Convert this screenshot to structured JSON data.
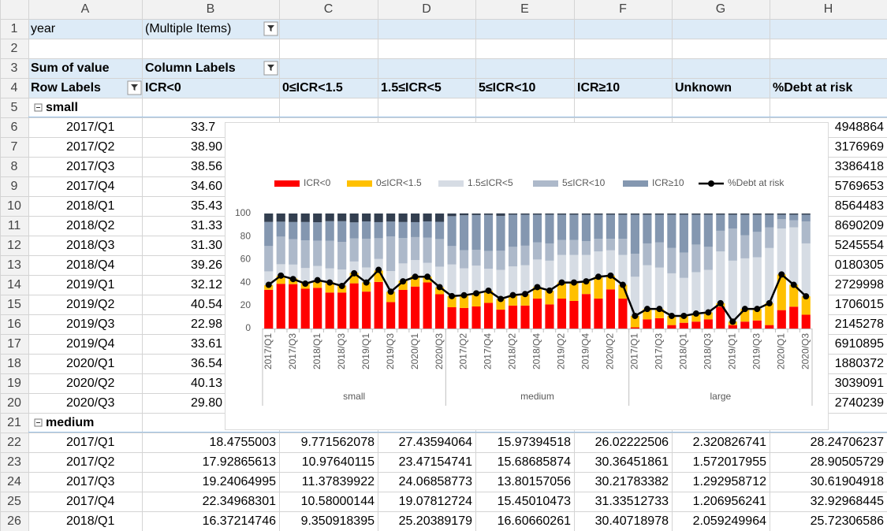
{
  "sheet": {
    "columns": [
      "A",
      "B",
      "C",
      "D",
      "E",
      "F",
      "G",
      "H"
    ],
    "row_numbers": [
      1,
      2,
      3,
      4,
      5,
      6,
      7,
      8,
      9,
      10,
      11,
      12,
      13,
      14,
      15,
      16,
      17,
      18,
      19,
      20,
      21,
      22,
      23,
      24,
      25,
      26
    ],
    "rows": [
      [
        "year",
        "(Multiple Items)",
        null,
        null,
        null,
        null,
        null,
        null
      ],
      [
        null,
        null,
        null,
        null,
        null,
        null,
        null,
        null
      ],
      [
        "Sum of value",
        "Column Labels",
        null,
        null,
        null,
        null,
        null,
        null
      ],
      [
        "Row Labels",
        "ICR<0",
        "0≤ICR<1.5",
        "1.5≤ICR<5",
        "5≤ICR<10",
        "ICR≥10",
        "Unknown",
        "%Debt at risk"
      ],
      [
        "small",
        null,
        null,
        null,
        null,
        null,
        null,
        null
      ],
      [
        "2017/Q1",
        "33.7",
        null,
        null,
        null,
        null,
        null,
        "4948864"
      ],
      [
        "2017/Q2",
        "38.90",
        null,
        null,
        null,
        null,
        null,
        "3176969"
      ],
      [
        "2017/Q3",
        "38.56",
        null,
        null,
        null,
        null,
        null,
        "3386418"
      ],
      [
        "2017/Q4",
        "34.60",
        null,
        null,
        null,
        null,
        null,
        "5769653"
      ],
      [
        "2018/Q1",
        "35.43",
        null,
        null,
        null,
        null,
        null,
        "8564483"
      ],
      [
        "2018/Q2",
        "31.33",
        null,
        null,
        null,
        null,
        null,
        "8690209"
      ],
      [
        "2018/Q3",
        "31.30",
        null,
        null,
        null,
        null,
        null,
        "5245554"
      ],
      [
        "2018/Q4",
        "39.26",
        null,
        null,
        null,
        null,
        null,
        "0180305"
      ],
      [
        "2019/Q1",
        "32.12",
        null,
        null,
        null,
        null,
        null,
        "2729998"
      ],
      [
        "2019/Q2",
        "40.54",
        null,
        null,
        null,
        null,
        null,
        "1706015"
      ],
      [
        "2019/Q3",
        "22.98",
        null,
        null,
        null,
        null,
        null,
        "2145278"
      ],
      [
        "2019/Q4",
        "33.61",
        null,
        null,
        null,
        null,
        null,
        "6910895"
      ],
      [
        "2020/Q1",
        "36.54",
        null,
        null,
        null,
        null,
        null,
        "1880372"
      ],
      [
        "2020/Q2",
        "40.13",
        null,
        null,
        null,
        null,
        null,
        "3039091"
      ],
      [
        "2020/Q3",
        "29.80",
        null,
        null,
        null,
        null,
        null,
        "2740239"
      ],
      [
        "medium",
        null,
        null,
        null,
        null,
        null,
        null,
        null
      ],
      [
        "2017/Q1",
        "18.4755003",
        "9.771562078",
        "27.43594064",
        "15.97394518",
        "26.02222506",
        "2.320826741",
        "28.24706237"
      ],
      [
        "2017/Q2",
        "17.92865613",
        "10.97640115",
        "23.47154741",
        "15.68685874",
        "30.36451861",
        "1.572017955",
        "28.90505729"
      ],
      [
        "2017/Q3",
        "19.24064995",
        "11.37839922",
        "24.06858773",
        "13.80157056",
        "30.21783382",
        "1.292958712",
        "30.61904918"
      ],
      [
        "2017/Q4",
        "22.34968301",
        "10.58000144",
        "19.07812724",
        "15.45010473",
        "31.33512733",
        "1.206956241",
        "32.92968445"
      ],
      [
        "2018/Q1",
        "16.37214746",
        "9.350918395",
        "25.20389179",
        "16.60660261",
        "30.40718978",
        "2.059249964",
        "25.72306586"
      ]
    ]
  },
  "chart_data": {
    "type": "bar",
    "stacked": true,
    "grid": false,
    "categories": [
      "2017/Q1",
      null,
      "2017/Q3",
      null,
      "2018/Q1",
      null,
      "2018/Q3",
      null,
      "2019/Q1",
      null,
      "2019/Q3",
      null,
      "2020/Q1",
      null,
      "2020/Q3",
      null,
      "2017/Q2",
      null,
      "2017/Q4",
      null,
      "2018/Q2",
      null,
      "2018/Q4",
      null,
      "2019/Q2",
      null,
      "2019/Q4",
      null,
      "2020/Q2",
      null,
      "2017/Q1",
      null,
      "2017/Q3",
      null,
      "2018/Q1",
      null,
      "2018/Q3",
      null,
      "2019/Q1",
      null,
      "2019/Q3",
      null,
      "2020/Q1",
      null,
      "2020/Q3"
    ],
    "groups": [
      "small",
      "medium",
      "large"
    ],
    "ylim": [
      0,
      100
    ],
    "yticks": [
      0,
      20,
      40,
      60,
      80,
      100
    ],
    "series": [
      {
        "name": "ICR<0",
        "color": "#ff0000",
        "values": [
          33.7,
          38.9,
          38.6,
          34.6,
          35.4,
          31.3,
          31.3,
          39.3,
          32.1,
          40.5,
          23.0,
          33.6,
          36.5,
          40.1,
          29.8,
          18.5,
          17.9,
          19.2,
          22.3,
          16.4,
          20,
          20,
          26,
          21,
          26,
          24,
          30,
          26,
          34,
          26,
          1,
          8,
          9,
          3,
          5,
          6,
          8,
          19,
          3,
          6,
          7,
          3,
          16,
          19,
          12
        ]
      },
      {
        "name": "0≤ICR<1.5",
        "color": "#ffc000",
        "values": [
          4,
          7,
          5,
          5,
          6,
          9,
          6,
          9,
          8,
          10,
          9,
          8,
          9,
          5,
          6,
          9.8,
          11.0,
          11.4,
          10.6,
          9.4,
          9,
          10,
          10,
          12,
          14,
          16,
          11,
          19,
          12,
          12,
          10,
          9,
          8,
          8,
          6,
          7,
          6,
          3,
          3,
          11,
          10,
          19,
          31,
          19,
          16
        ]
      },
      {
        "name": "1.5≤ICR<5",
        "color": "#d6dce4",
        "values": [
          12,
          10,
          12,
          13,
          13,
          12,
          14,
          10,
          13,
          10,
          18,
          15,
          14,
          12,
          18,
          27.4,
          23.5,
          24.1,
          19.1,
          25.2,
          25,
          25,
          24,
          26,
          24,
          24,
          23,
          22,
          22,
          26,
          34,
          38,
          36,
          37,
          33,
          36,
          37,
          45,
          53,
          44,
          45,
          48,
          40,
          50,
          46
        ]
      },
      {
        "name": "5≤ICR<10",
        "color": "#adb9ca",
        "values": [
          22,
          24,
          22,
          24,
          22,
          24,
          24,
          20,
          25,
          18,
          30,
          22,
          20,
          22,
          24,
          16.0,
          15.7,
          13.8,
          15.5,
          16.6,
          17,
          17,
          15,
          15,
          13,
          13,
          12,
          11,
          10,
          14,
          20,
          19,
          22,
          22,
          22,
          24,
          20,
          18,
          28,
          20,
          22,
          18,
          8,
          6,
          19
        ]
      },
      {
        "name": "ICR≥10",
        "color": "#8497b0",
        "values": [
          21,
          13,
          15,
          16,
          16,
          17,
          18,
          14,
          15,
          14,
          13,
          14,
          13,
          14,
          15,
          26.0,
          30.4,
          30.2,
          31.3,
          30.4,
          28,
          27,
          24,
          25,
          22,
          22,
          23,
          21,
          21,
          21,
          34,
          25,
          24,
          29,
          33,
          26,
          28,
          14,
          12,
          18,
          15,
          11,
          4,
          5,
          6
        ]
      },
      {
        "name": null,
        "color": "#333f50",
        "values": [
          7.3,
          7.1,
          7.4,
          7.4,
          7.6,
          6.7,
          6.7,
          7.7,
          6.9,
          7.5,
          7,
          7.4,
          7.5,
          6.9,
          7.2,
          2.3,
          1.6,
          1.3,
          1.2,
          2.1,
          1,
          1,
          1,
          1,
          1,
          1,
          1,
          1,
          1,
          1,
          1,
          1,
          1,
          1,
          1,
          1,
          1,
          1,
          1,
          1,
          1,
          1,
          1,
          1,
          1
        ]
      },
      {
        "name": "%Debt at risk",
        "type": "line",
        "color": "#000000",
        "values": [
          38,
          46,
          43,
          39,
          42,
          40,
          37,
          48,
          40,
          51,
          32,
          41,
          45,
          45,
          36,
          28.2,
          28.9,
          30.6,
          32.9,
          25.7,
          29,
          30,
          36,
          33,
          40,
          40,
          41,
          45,
          46,
          38,
          11,
          17,
          17,
          11,
          11,
          13,
          14,
          22,
          6,
          17,
          17,
          22,
          47,
          38,
          28
        ]
      }
    ]
  }
}
